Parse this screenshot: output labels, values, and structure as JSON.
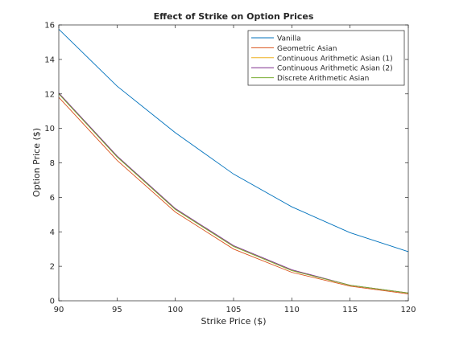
{
  "chart_data": {
    "type": "line",
    "title": "Effect of Strike on Option Prices",
    "xlabel": "Strike Price ($)",
    "ylabel": "Option Price ($)",
    "xlim": [
      90,
      120
    ],
    "ylim": [
      0,
      16
    ],
    "x_ticks": [
      90,
      95,
      100,
      105,
      110,
      115,
      120
    ],
    "y_ticks": [
      0,
      2,
      4,
      6,
      8,
      10,
      12,
      14,
      16
    ],
    "grid": false,
    "legend_position": "top-right",
    "x": [
      90,
      95,
      100,
      105,
      110,
      115,
      120
    ],
    "series": [
      {
        "name": "Vanilla",
        "color": "#0072BD",
        "values": [
          15.75,
          12.45,
          9.75,
          7.35,
          5.45,
          3.95,
          2.85
        ]
      },
      {
        "name": "Geometric Asian",
        "color": "#D95319",
        "values": [
          11.8,
          8.15,
          5.15,
          3.0,
          1.65,
          0.85,
          0.4
        ]
      },
      {
        "name": "Continuous Arithmetic Asian (1)",
        "color": "#EDB120",
        "values": [
          12.0,
          8.35,
          5.3,
          3.15,
          1.75,
          0.9,
          0.45
        ]
      },
      {
        "name": "Continuous Arithmetic Asian (2)",
        "color": "#7E2F8E",
        "values": [
          12.05,
          8.4,
          5.35,
          3.2,
          1.8,
          0.9,
          0.45
        ]
      },
      {
        "name": "Discrete Arithmetic Asian",
        "color": "#77AC30",
        "values": [
          12.0,
          8.35,
          5.3,
          3.15,
          1.75,
          0.9,
          0.45
        ]
      }
    ]
  }
}
